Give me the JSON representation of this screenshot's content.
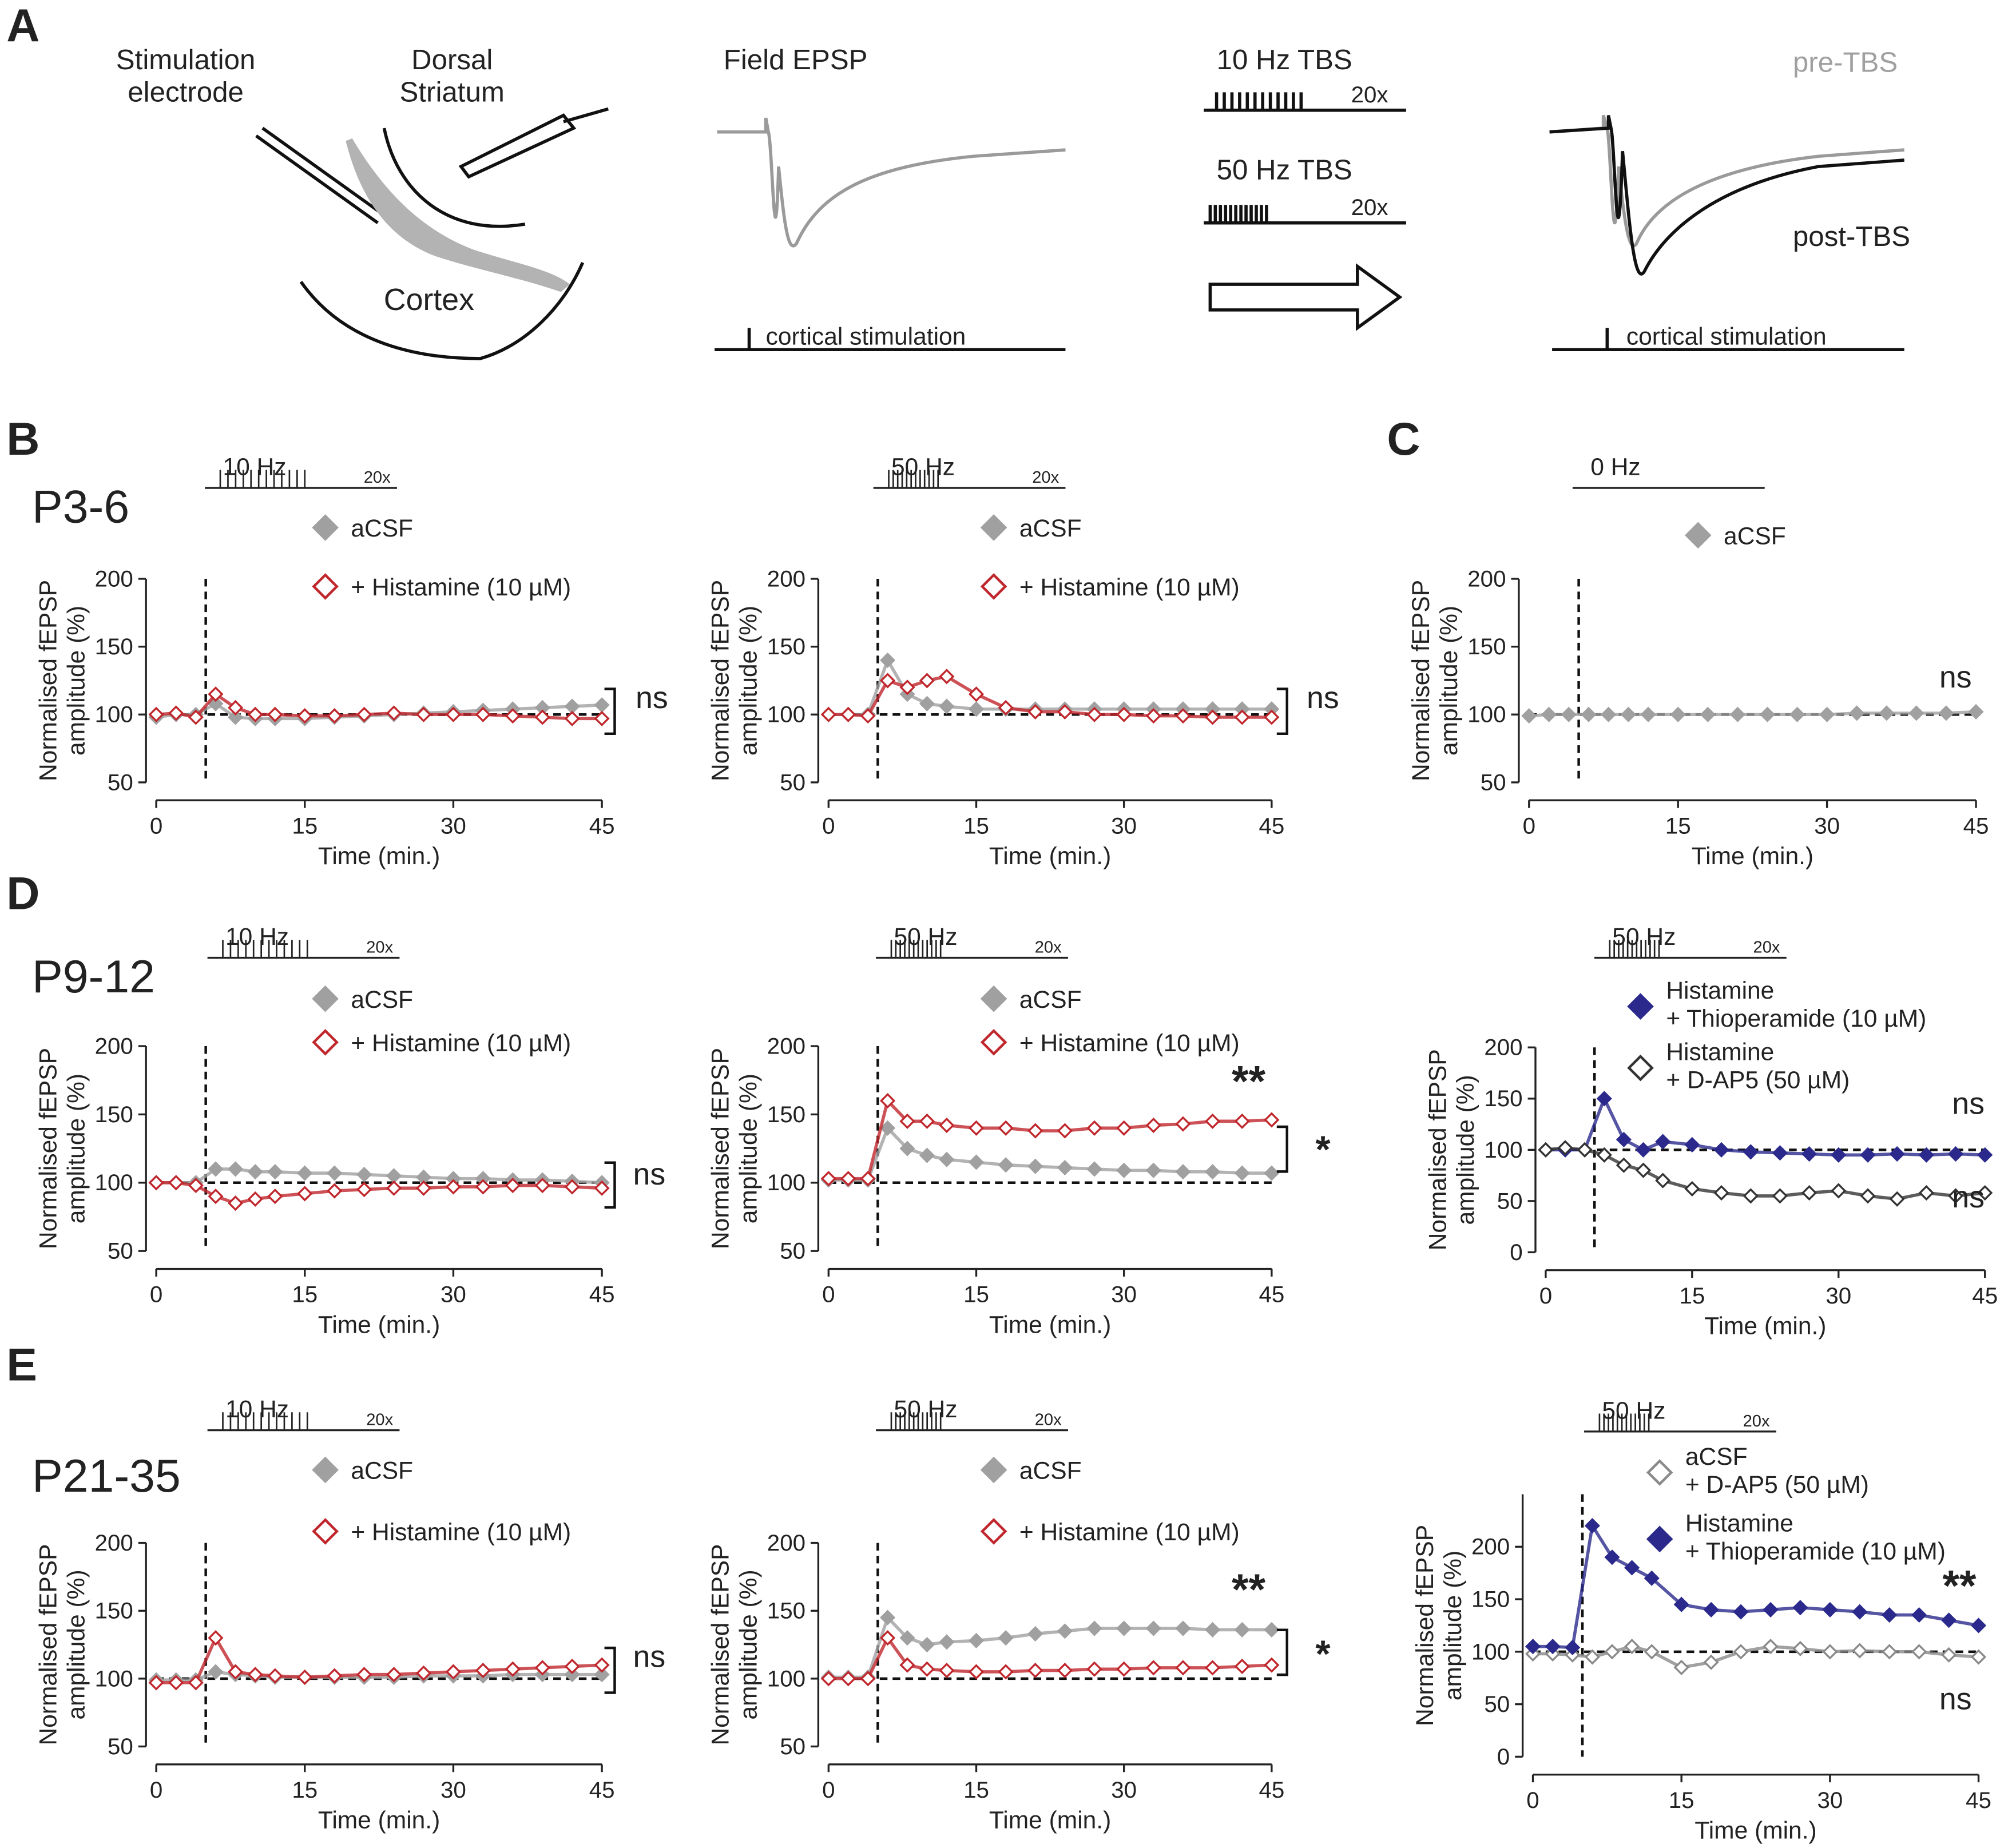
{
  "panel_labels": [
    "A",
    "B",
    "C",
    "D",
    "E"
  ],
  "row_labels": [
    "P3-6",
    "P9-12",
    "P21-35"
  ],
  "schematic": {
    "electrode": "Stimulation\nelectrode",
    "striatum": "Dorsal\nStriatum",
    "cortex": "Cortex",
    "field": "Field EPSP",
    "stim1": "cortical stimulation",
    "tbs10": "10 Hz TBS",
    "rep10": "20x",
    "tbs50": "50 Hz TBS",
    "rep50": "20x",
    "pre": "pre-TBS",
    "post": "post-TBS",
    "stim2": "cortical stimulation"
  },
  "chart_data": [
    {
      "type": "line",
      "stimulus": "10 Hz",
      "stimulus_repeat": "20x",
      "stimulus_time": 5,
      "baseline": 100,
      "xlabel": "Time (min.)",
      "ylabel": "Normalised fEPSP\namplitude (%)",
      "x": [
        0,
        2,
        4,
        6,
        8,
        10,
        12,
        15,
        18,
        21,
        24,
        27,
        30,
        33,
        36,
        39,
        42,
        45
      ],
      "series": [
        {
          "name": "aCSF",
          "color": "#a0a0a0",
          "marker": "filled",
          "values": [
            98,
            100,
            100,
            108,
            98,
            97,
            97,
            97,
            98,
            99,
            100,
            101,
            102,
            103,
            104,
            105,
            106,
            107
          ]
        },
        {
          "name": "+ Histamine (10 µM)",
          "color": "#c0272d",
          "marker": "open",
          "values": [
            100,
            101,
            98,
            115,
            105,
            100,
            100,
            99,
            99,
            100,
            101,
            100,
            100,
            100,
            99,
            98,
            97,
            97
          ]
        }
      ],
      "xlim": [
        0,
        45
      ],
      "xticks": [
        0,
        15,
        30,
        45
      ],
      "ylim": [
        50,
        200
      ],
      "yticks": [
        50,
        100,
        150,
        200
      ],
      "annotations": [
        "ns"
      ]
    },
    {
      "type": "line",
      "stimulus": "50 Hz",
      "stimulus_repeat": "20x",
      "stimulus_time": 5,
      "baseline": 100,
      "xlabel": "Time (min.)",
      "ylabel": "Normalised fEPSP\namplitude (%)",
      "x": [
        0,
        2,
        4,
        6,
        8,
        10,
        12,
        15,
        18,
        21,
        24,
        27,
        30,
        33,
        36,
        39,
        42,
        45
      ],
      "series": [
        {
          "name": "aCSF",
          "color": "#a0a0a0",
          "marker": "filled",
          "values": [
            100,
            100,
            100,
            140,
            115,
            108,
            106,
            104,
            104,
            104,
            104,
            104,
            104,
            104,
            104,
            104,
            104,
            104
          ]
        },
        {
          "name": "+ Histamine (10 µM)",
          "color": "#c0272d",
          "marker": "open",
          "values": [
            100,
            100,
            99,
            125,
            120,
            125,
            128,
            115,
            105,
            102,
            102,
            100,
            100,
            99,
            99,
            98,
            98,
            98
          ]
        }
      ],
      "xlim": [
        0,
        45
      ],
      "xticks": [
        0,
        15,
        30,
        45
      ],
      "ylim": [
        50,
        200
      ],
      "yticks": [
        50,
        100,
        150,
        200
      ],
      "annotations": [
        "ns"
      ]
    },
    {
      "type": "line",
      "stimulus": "0 Hz",
      "stimulus_time": 5,
      "baseline": 100,
      "xlabel": "Time (min.)",
      "ylabel": "Normalised fEPSP\namplitude (%)",
      "x": [
        0,
        2,
        4,
        6,
        8,
        10,
        12,
        15,
        18,
        21,
        24,
        27,
        30,
        33,
        36,
        39,
        42,
        45
      ],
      "series": [
        {
          "name": "aCSF",
          "color": "#a0a0a0",
          "marker": "filled",
          "values": [
            99,
            100,
            100,
            100,
            100,
            100,
            100,
            100,
            100,
            100,
            100,
            100,
            100,
            101,
            101,
            101,
            101,
            102
          ]
        }
      ],
      "xlim": [
        0,
        45
      ],
      "xticks": [
        0,
        15,
        30,
        45
      ],
      "ylim": [
        50,
        200
      ],
      "yticks": [
        50,
        100,
        150,
        200
      ],
      "annotations": [
        "ns"
      ]
    },
    {
      "type": "line",
      "stimulus": "10 Hz",
      "stimulus_repeat": "20x",
      "stimulus_time": 5,
      "baseline": 100,
      "xlabel": "Time (min.)",
      "ylabel": "Normalised fEPSP\namplitude (%)",
      "x": [
        0,
        2,
        4,
        6,
        8,
        10,
        12,
        15,
        18,
        21,
        24,
        27,
        30,
        33,
        36,
        39,
        42,
        45
      ],
      "series": [
        {
          "name": "aCSF",
          "color": "#a0a0a0",
          "marker": "filled",
          "values": [
            100,
            100,
            100,
            110,
            110,
            108,
            108,
            107,
            107,
            106,
            105,
            104,
            103,
            103,
            102,
            102,
            101,
            100
          ]
        },
        {
          "name": "+ Histamine (10 µM)",
          "color": "#c0272d",
          "marker": "open",
          "values": [
            100,
            100,
            98,
            90,
            85,
            88,
            90,
            92,
            94,
            95,
            96,
            96,
            97,
            97,
            98,
            98,
            97,
            96
          ]
        }
      ],
      "xlim": [
        0,
        45
      ],
      "xticks": [
        0,
        15,
        30,
        45
      ],
      "ylim": [
        50,
        200
      ],
      "yticks": [
        50,
        100,
        150,
        200
      ],
      "annotations": [
        "ns"
      ]
    },
    {
      "type": "line",
      "stimulus": "50 Hz",
      "stimulus_repeat": "20x",
      "stimulus_time": 5,
      "baseline": 100,
      "xlabel": "Time (min.)",
      "ylabel": "Normalised fEPSP\namplitude (%)",
      "x": [
        0,
        2,
        4,
        6,
        8,
        10,
        12,
        15,
        18,
        21,
        24,
        27,
        30,
        33,
        36,
        39,
        42,
        45
      ],
      "series": [
        {
          "name": "aCSF",
          "color": "#a0a0a0",
          "marker": "filled",
          "values": [
            102,
            102,
            102,
            140,
            125,
            120,
            117,
            115,
            113,
            112,
            111,
            110,
            109,
            109,
            108,
            108,
            107,
            107
          ]
        },
        {
          "name": "+ Histamine (10 µM)",
          "color": "#c0272d",
          "marker": "open",
          "values": [
            103,
            103,
            103,
            160,
            145,
            145,
            142,
            140,
            140,
            138,
            138,
            140,
            140,
            142,
            143,
            145,
            145,
            146
          ]
        }
      ],
      "xlim": [
        0,
        45
      ],
      "xticks": [
        0,
        15,
        30,
        45
      ],
      "ylim": [
        50,
        200
      ],
      "yticks": [
        50,
        100,
        150,
        200
      ],
      "annotations": [
        "**",
        "*"
      ]
    },
    {
      "type": "line",
      "stimulus": "50 Hz",
      "stimulus_repeat": "20x",
      "stimulus_time": 5,
      "baseline": 100,
      "xlabel": "Time (min.)",
      "ylabel": "Normalised fEPSP\namplitude (%)",
      "x": [
        0,
        2,
        4,
        6,
        8,
        10,
        12,
        15,
        18,
        21,
        24,
        27,
        30,
        33,
        36,
        39,
        42,
        45
      ],
      "series": [
        {
          "name": "Histamine\n+ Thioperamide (10 µM)",
          "color": "#2b2a8c",
          "marker": "filled",
          "values": [
            100,
            100,
            100,
            150,
            110,
            100,
            108,
            105,
            100,
            98,
            97,
            96,
            95,
            95,
            96,
            95,
            96,
            95
          ]
        },
        {
          "name": "Histamine\n+ D-AP5  (50 µM)",
          "color": "#333333",
          "marker": "open",
          "values": [
            100,
            102,
            100,
            95,
            85,
            80,
            70,
            62,
            58,
            55,
            55,
            58,
            60,
            55,
            52,
            58,
            55,
            58
          ]
        }
      ],
      "xlim": [
        0,
        45
      ],
      "xticks": [
        0,
        15,
        30,
        45
      ],
      "ylim": [
        0,
        200
      ],
      "yticks": [
        0,
        50,
        100,
        150,
        200
      ],
      "annotations": [
        "ns",
        "ns"
      ]
    },
    {
      "type": "line",
      "stimulus": "10 Hz",
      "stimulus_repeat": "20x",
      "stimulus_time": 5,
      "baseline": 100,
      "xlabel": "Time (min.)",
      "ylabel": "Normalised fEPSP\namplitude (%)",
      "x": [
        0,
        2,
        4,
        6,
        8,
        10,
        12,
        15,
        18,
        21,
        24,
        27,
        30,
        33,
        36,
        39,
        42,
        45
      ],
      "series": [
        {
          "name": "aCSF",
          "color": "#a0a0a0",
          "marker": "filled",
          "values": [
            99,
            99,
            99,
            105,
            103,
            102,
            101,
            101,
            101,
            101,
            101,
            102,
            102,
            102,
            103,
            103,
            103,
            103
          ]
        },
        {
          "name": "+ Histamine (10 µM)",
          "color": "#c0272d",
          "marker": "open",
          "values": [
            97,
            97,
            97,
            130,
            105,
            103,
            102,
            101,
            102,
            103,
            103,
            104,
            105,
            106,
            107,
            108,
            109,
            110
          ]
        }
      ],
      "xlim": [
        0,
        45
      ],
      "xticks": [
        0,
        15,
        30,
        45
      ],
      "ylim": [
        50,
        200
      ],
      "yticks": [
        50,
        100,
        150,
        200
      ],
      "annotations": [
        "ns"
      ]
    },
    {
      "type": "line",
      "stimulus": "50 Hz",
      "stimulus_repeat": "20x",
      "stimulus_time": 5,
      "baseline": 100,
      "xlabel": "Time (min.)",
      "ylabel": "Normalised fEPSP\namplitude (%)",
      "x": [
        0,
        2,
        4,
        6,
        8,
        10,
        12,
        15,
        18,
        21,
        24,
        27,
        30,
        33,
        36,
        39,
        42,
        45
      ],
      "series": [
        {
          "name": "aCSF",
          "color": "#a0a0a0",
          "marker": "filled",
          "values": [
            101,
            101,
            101,
            145,
            130,
            125,
            127,
            128,
            130,
            133,
            135,
            137,
            137,
            137,
            137,
            136,
            136,
            136
          ]
        },
        {
          "name": "+ Histamine (10 µM)",
          "color": "#c0272d",
          "marker": "open",
          "values": [
            100,
            100,
            100,
            130,
            110,
            107,
            106,
            105,
            105,
            106,
            106,
            107,
            107,
            108,
            108,
            108,
            109,
            110
          ]
        }
      ],
      "xlim": [
        0,
        45
      ],
      "xticks": [
        0,
        15,
        30,
        45
      ],
      "ylim": [
        50,
        200
      ],
      "yticks": [
        50,
        100,
        150,
        200
      ],
      "annotations": [
        "**",
        "*"
      ]
    },
    {
      "type": "line",
      "stimulus": "50 Hz",
      "stimulus_repeat": "20x",
      "stimulus_time": 5,
      "baseline": 100,
      "xlabel": "Time (min.)",
      "ylabel": "Normalised fEPSP\namplitude (%)",
      "x": [
        0,
        2,
        4,
        6,
        8,
        10,
        12,
        15,
        18,
        21,
        24,
        27,
        30,
        33,
        36,
        39,
        42,
        45
      ],
      "series": [
        {
          "name": "aCSF\n+ D-AP5 (50 µM)",
          "color": "#8a8a8a",
          "marker": "open",
          "values": [
            98,
            98,
            97,
            95,
            100,
            105,
            100,
            85,
            90,
            100,
            105,
            103,
            100,
            101,
            100,
            100,
            97,
            95
          ]
        },
        {
          "name": "Histamine\n+ Thioperamide (10 µM)",
          "color": "#2b2a8c",
          "marker": "filled",
          "values": [
            105,
            105,
            104,
            220,
            190,
            180,
            170,
            145,
            140,
            138,
            140,
            142,
            140,
            138,
            135,
            135,
            130,
            125
          ]
        }
      ],
      "xlim": [
        0,
        45
      ],
      "xticks": [
        0,
        15,
        30,
        45
      ],
      "ylim": [
        0,
        250
      ],
      "yticks": [
        0,
        50,
        100,
        150,
        200
      ],
      "annotations": [
        "**",
        "ns"
      ]
    }
  ]
}
